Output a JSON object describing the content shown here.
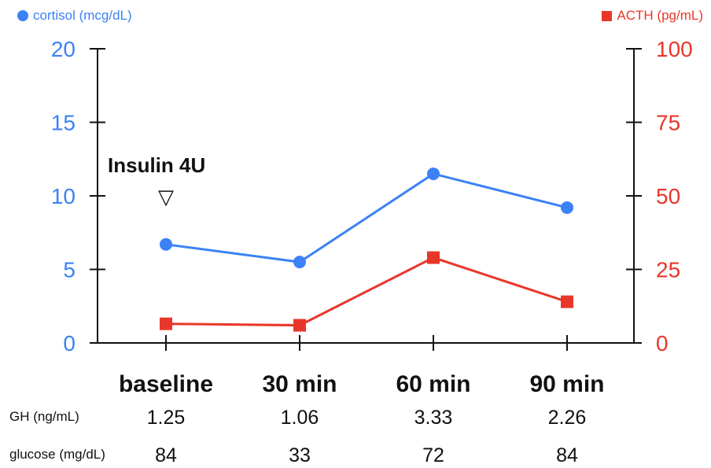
{
  "legend": {
    "left": "cortisol (mcg/dL)",
    "right": "ACTH (pg/mL)"
  },
  "colors": {
    "cortisol": "#3b82f6",
    "acth": "#e8372a",
    "axis": "#111111"
  },
  "annotation": {
    "label": "Insulin 4U",
    "marker": "▽"
  },
  "chart_data": {
    "type": "line",
    "categories": [
      "baseline",
      "30 min",
      "60 min",
      "90 min"
    ],
    "series": [
      {
        "name": "cortisol (mcg/dL)",
        "axis": "left",
        "marker": "circle",
        "values": [
          6.7,
          5.5,
          11.5,
          9.2
        ]
      },
      {
        "name": "ACTH (pg/mL)",
        "axis": "right",
        "marker": "square",
        "values": [
          6.5,
          6.0,
          29,
          14
        ]
      }
    ],
    "y_left": {
      "ylim": [
        0,
        20
      ],
      "ticks": [
        "0",
        "5",
        "10",
        "15",
        "20"
      ]
    },
    "y_right": {
      "ylim": [
        0,
        100
      ],
      "ticks": [
        "0",
        "25",
        "50",
        "75",
        "100"
      ]
    },
    "grid": false
  },
  "table": {
    "rows": [
      {
        "label": "GH (ng/mL)",
        "values": [
          "1.25",
          "1.06",
          "3.33",
          "2.26"
        ]
      },
      {
        "label": "glucose (mg/dL)",
        "values": [
          "84",
          "33",
          "72",
          "84"
        ]
      }
    ]
  }
}
